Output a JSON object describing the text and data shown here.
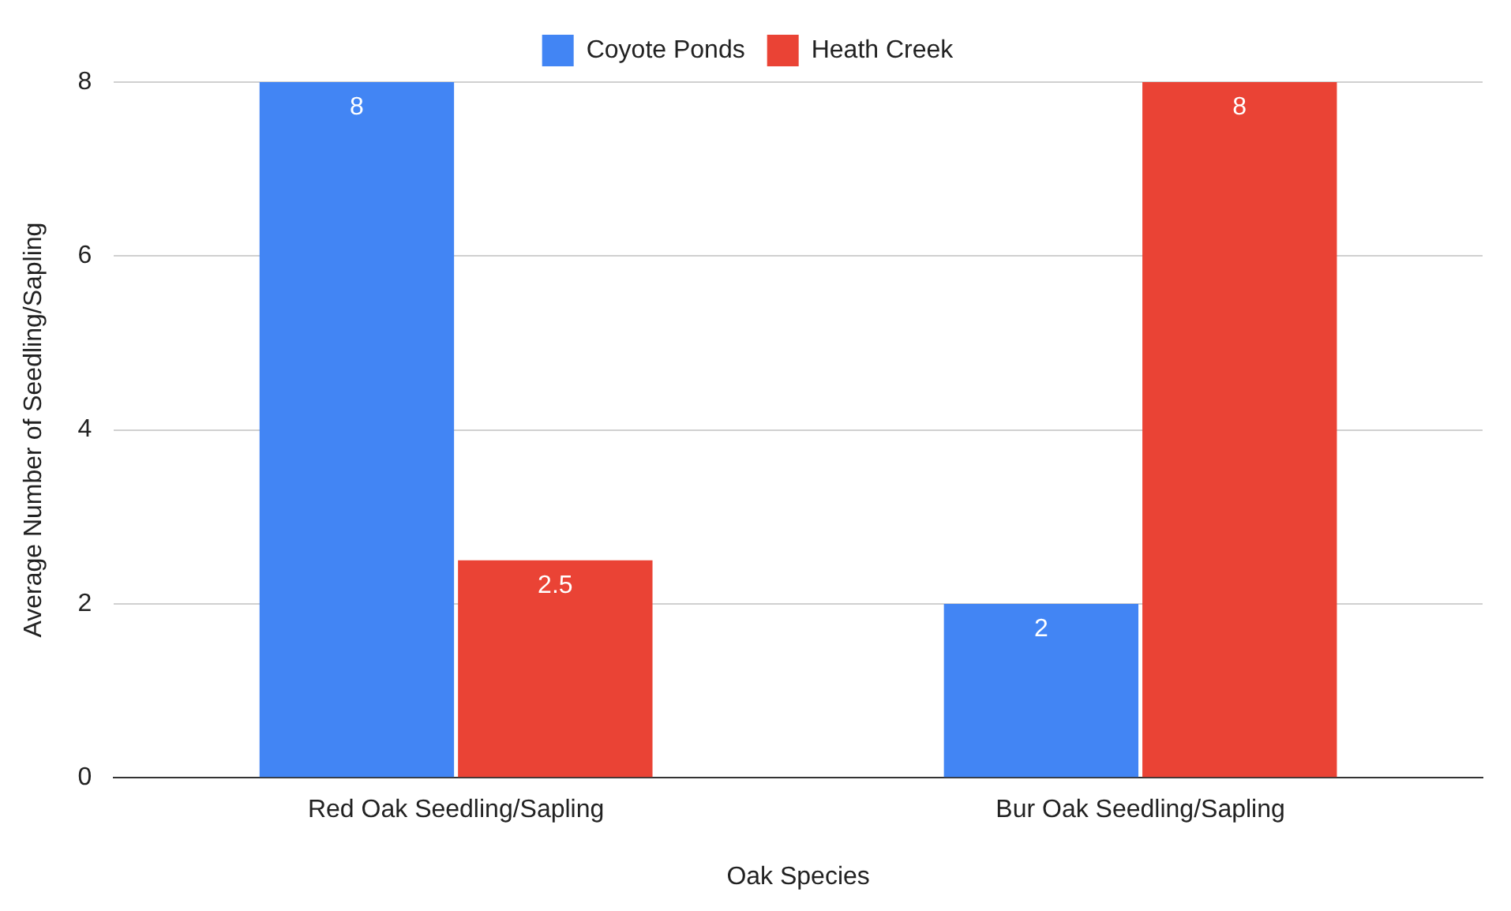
{
  "chart_data": {
    "type": "bar",
    "xlabel": "Oak Species",
    "ylabel": "Average Number of Seedling/Sapling",
    "categories": [
      "Red Oak Seedling/Sapling",
      "Bur Oak Seedling/Sapling"
    ],
    "series": [
      {
        "name": "Coyote Ponds",
        "color": "#4285f4",
        "values": [
          8,
          2
        ]
      },
      {
        "name": "Heath Creek",
        "color": "#ea4335",
        "values": [
          2.5,
          8
        ]
      }
    ],
    "ylim": [
      0,
      8
    ],
    "yticks": [
      0,
      2,
      4,
      6,
      8
    ],
    "grid": "y",
    "legend": "top",
    "data_labels": true
  }
}
